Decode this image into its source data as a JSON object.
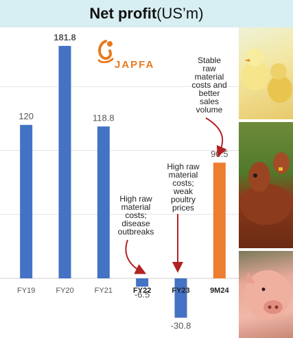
{
  "header": {
    "title_bold": "Net profit",
    "title_rest": "(US’m)"
  },
  "logo": {
    "text": "JAPFA",
    "color": "#e8791f"
  },
  "annotations": {
    "fy22": "High raw\nmaterial\ncosts;\ndisease\noutbreaks",
    "fy23": "High raw\nmaterial\ncosts;\nweak\npoultry\nprices",
    "m24": "Stable\nraw\nmaterial\ncosts and\nbetter\nsales\nvolume"
  },
  "photos": {
    "top": "chicks",
    "middle": "cattle",
    "bottom": "pig"
  },
  "colors": {
    "bar_blue": "#4472c4",
    "bar_orange": "#ed7d31",
    "arrow": "#b22222",
    "header_bg": "#d7eef2"
  },
  "chart_data": {
    "type": "bar",
    "categories": [
      "FY19",
      "FY20",
      "FY21",
      "FY22",
      "FY23",
      "9M24"
    ],
    "values": [
      120,
      181.8,
      118.8,
      -6.5,
      -30.8,
      90.5
    ],
    "value_labels": [
      "120",
      "181.8",
      "118.8",
      "-6.5",
      "-30.8",
      "90.5"
    ],
    "bar_colors": [
      "#4472c4",
      "#4472c4",
      "#4472c4",
      "#4472c4",
      "#4472c4",
      "#ed7d31"
    ],
    "bold_categories": [
      "FY22",
      "FY23",
      "9M24"
    ],
    "title": "Net profit(US’m)",
    "grid": true,
    "legend": "none"
  }
}
